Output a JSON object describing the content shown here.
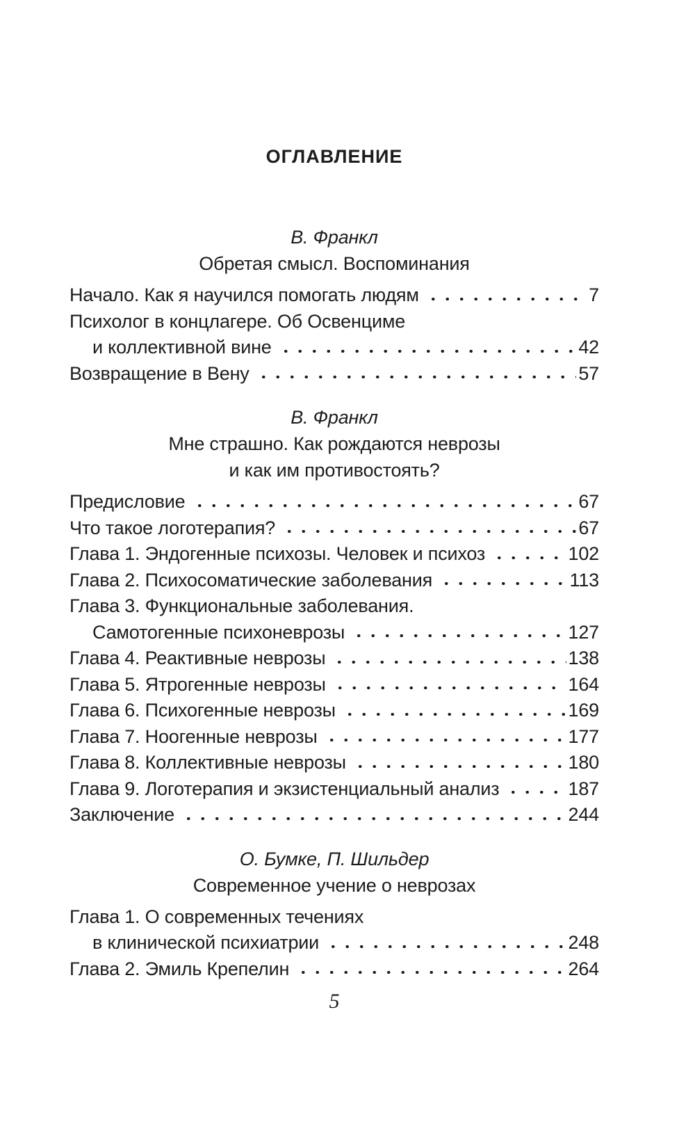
{
  "title": "ОГЛАВЛЕНИЕ",
  "footer": {
    "page_number": "5"
  },
  "text_color": "#1c1c1c",
  "sections": [
    {
      "author": "В. Франкл",
      "title_lines": [
        "Обретая смысл. Воспоминания"
      ],
      "lines": [
        {
          "label": "Начало. Как я научился помогать людям",
          "page": "7",
          "indent": false,
          "dots": true
        },
        {
          "label": "Психолог в концлагере. Об Освенциме",
          "page": "",
          "indent": false,
          "dots": false
        },
        {
          "label": "и коллективной вине",
          "page": "42",
          "indent": true,
          "dots": true
        },
        {
          "label": "Возвращение в Вену",
          "page": "57",
          "indent": false,
          "dots": true
        }
      ]
    },
    {
      "author": "В. Франкл",
      "title_lines": [
        "Мне страшно. Как рождаются неврозы",
        "и как им противостоять?"
      ],
      "lines": [
        {
          "label": "Предисловие",
          "page": "67",
          "indent": false,
          "dots": true
        },
        {
          "label": "Что такое логотерапия?",
          "page": "67",
          "indent": false,
          "dots": true
        },
        {
          "label": "Глава 1. Эндогенные психозы. Человек и психоз",
          "page": "102",
          "indent": false,
          "dots": true
        },
        {
          "label": "Глава 2. Психосоматические заболевания",
          "page": "113",
          "indent": false,
          "dots": true
        },
        {
          "label": "Глава 3. Функциональные заболевания.",
          "page": "",
          "indent": false,
          "dots": false
        },
        {
          "label": "Самотогенные психоневрозы",
          "page": "127",
          "indent": true,
          "dots": true
        },
        {
          "label": "Глава 4. Реактивные неврозы",
          "page": "138",
          "indent": false,
          "dots": true
        },
        {
          "label": "Глава 5. Ятрогенные неврозы",
          "page": "164",
          "indent": false,
          "dots": true
        },
        {
          "label": "Глава 6. Психогенные неврозы",
          "page": "169",
          "indent": false,
          "dots": true
        },
        {
          "label": "Глава 7. Ноогенные неврозы",
          "page": "177",
          "indent": false,
          "dots": true
        },
        {
          "label": "Глава 8. Коллективные неврозы",
          "page": "180",
          "indent": false,
          "dots": true
        },
        {
          "label": "Глава 9. Логотерапия и экзистенциальный анализ",
          "page": "187",
          "indent": false,
          "dots": true
        },
        {
          "label": "Заключение",
          "page": "244",
          "indent": false,
          "dots": true
        }
      ]
    },
    {
      "author": "О. Бумке, П. Шильдер",
      "title_lines": [
        "Современное учение о неврозах"
      ],
      "lines": [
        {
          "label": "Глава 1. О современных течениях",
          "page": "",
          "indent": false,
          "dots": false
        },
        {
          "label": "в клинической психиатрии",
          "page": "248",
          "indent": true,
          "dots": true
        },
        {
          "label": "Глава 2. Эмиль Крепелин",
          "page": "264",
          "indent": false,
          "dots": true
        }
      ]
    }
  ]
}
